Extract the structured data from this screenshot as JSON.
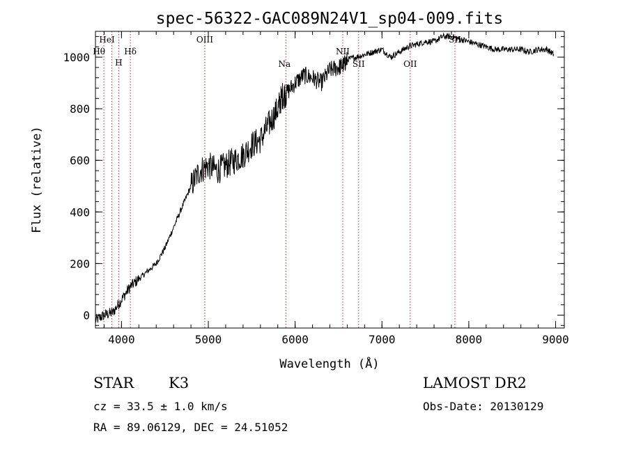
{
  "chart_data": {
    "type": "line",
    "title": "spec-56322-GAC089N24V1_sp04-009.fits",
    "xlabel": "Wavelength (Å)",
    "ylabel": "Flux (relative)",
    "xlim": [
      3700,
      9100
    ],
    "ylim": [
      -50,
      1100
    ],
    "xticks": [
      4000,
      5000,
      6000,
      7000,
      8000,
      9000
    ],
    "yticks": [
      0,
      200,
      400,
      600,
      800,
      1000
    ],
    "grid": false,
    "series": [
      {
        "x": [
          3700,
          3800,
          3900,
          4000,
          4100,
          4200,
          4300,
          4400,
          4500,
          4600,
          4700,
          4800,
          4900,
          5000,
          5100,
          5200,
          5300,
          5400,
          5500,
          5600,
          5700,
          5800,
          5850,
          5900,
          6000,
          6100,
          6200,
          6300,
          6400,
          6500,
          6560,
          6600,
          6700,
          6800,
          6900,
          7000,
          7100,
          7200,
          7300,
          7400,
          7500,
          7600,
          7700,
          7800,
          7900,
          8000,
          8100,
          8200,
          8300,
          8400,
          8500,
          8600,
          8700,
          8800,
          8900,
          8980
        ],
        "y": [
          -20,
          0,
          10,
          60,
          110,
          140,
          170,
          200,
          260,
          340,
          420,
          500,
          560,
          580,
          560,
          580,
          600,
          620,
          660,
          680,
          740,
          800,
          850,
          860,
          900,
          930,
          920,
          900,
          950,
          960,
          970,
          990,
          1000,
          1010,
          1020,
          1030,
          1000,
          1020,
          1040,
          1050,
          1060,
          1060,
          1080,
          1080,
          1070,
          1060,
          1050,
          1040,
          1030,
          1030,
          1030,
          1030,
          1020,
          1030,
          1030,
          1010
        ]
      }
    ],
    "lines": [
      {
        "label": "Hθ",
        "x": 3797
      },
      {
        "label": "HeI",
        "x": 3889
      },
      {
        "label": "H",
        "x": 3968
      },
      {
        "label": "Hδ",
        "x": 4102
      },
      {
        "label": "OIII",
        "x": 4959
      },
      {
        "label": "Na",
        "x": 5893
      },
      {
        "label": "NII",
        "x": 6548
      },
      {
        "label": "SII",
        "x": 6731
      },
      {
        "label": "OII",
        "x": 7325
      },
      {
        "label": "SII",
        "x": 7840
      }
    ],
    "line_color": "#cc2222"
  },
  "info": {
    "object_class": "STAR",
    "subclass": "K3",
    "survey": "LAMOST DR2",
    "redshift": "cz = 33.5 ± 1.0 km/s",
    "obs_date": "Obs-Date: 20130129",
    "coords": "RA =  89.06129, DEC =  24.51052"
  }
}
